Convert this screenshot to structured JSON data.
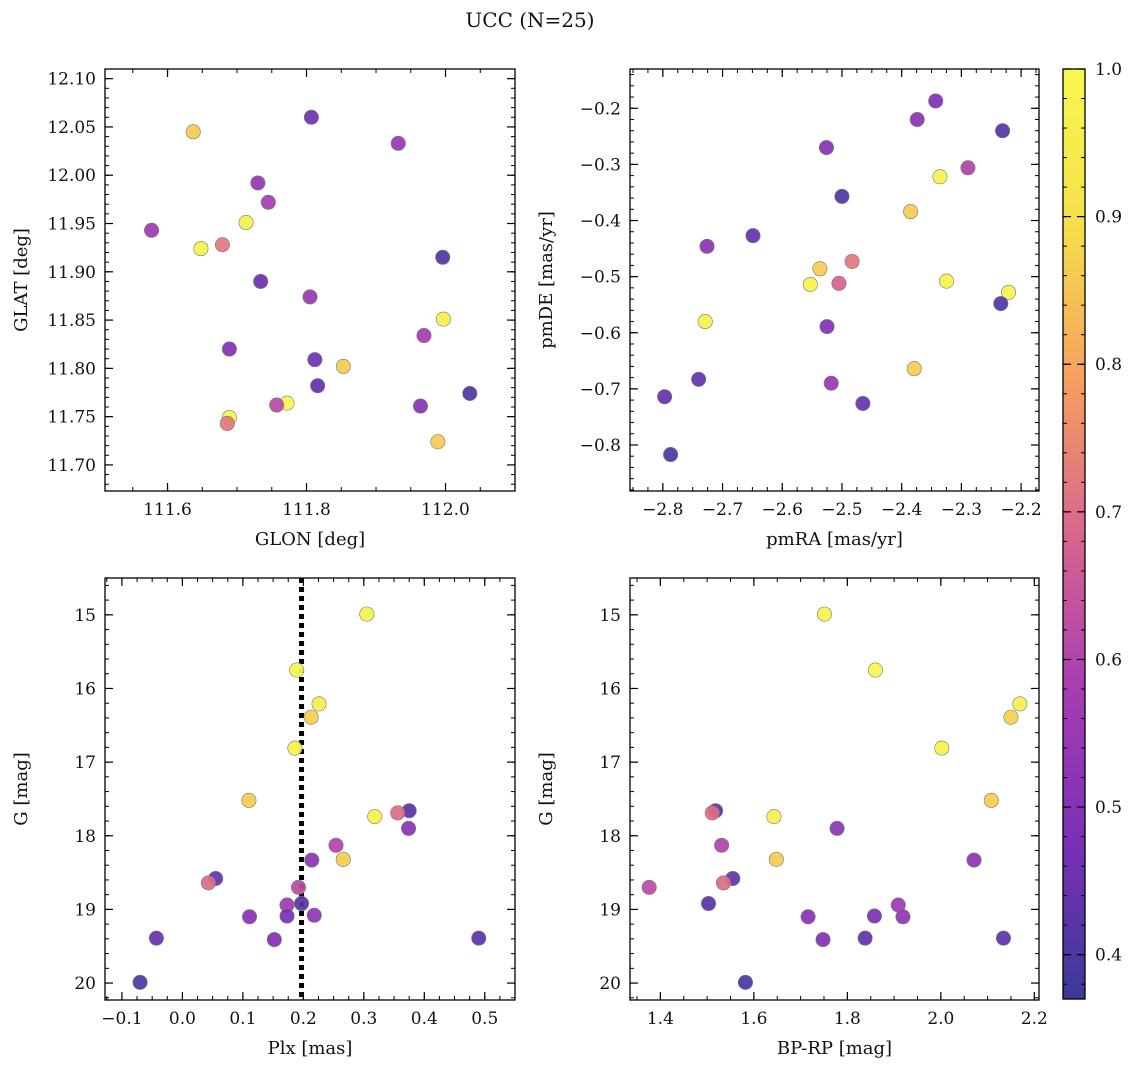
{
  "figure": {
    "title": "UCC (N=25)"
  },
  "colorbar": {
    "range": [
      0.37,
      1.0
    ],
    "ticks": [
      0.4,
      0.5,
      0.6,
      0.7,
      0.8,
      0.9,
      1.0
    ],
    "tick_labels": [
      "0.4",
      "0.5",
      "0.6",
      "0.7",
      "0.8",
      "0.9",
      "1.0"
    ],
    "colormap": "plasma",
    "colormap_stops": [
      "#3b3a98",
      "#7a2fb6",
      "#a63db2",
      "#d9658e",
      "#f6a05f",
      "#f5e04a",
      "#f6f84f"
    ]
  },
  "chart_data": [
    {
      "type": "scatter",
      "xlabel": "GLON [deg]",
      "ylabel": "GLAT [deg]",
      "xlim": [
        111.51,
        112.1
      ],
      "ylim": [
        11.673,
        12.11
      ],
      "xticks": [
        111.6,
        111.8,
        112.0
      ],
      "xtick_labels": [
        "111.6",
        "111.8",
        "112.0"
      ],
      "yticks": [
        11.7,
        11.75,
        11.8,
        11.85,
        11.9,
        11.95,
        12.0,
        12.05,
        12.1
      ],
      "ytick_labels": [
        "11.70",
        "11.75",
        "11.80",
        "11.85",
        "11.90",
        "11.95",
        "12.00",
        "12.05",
        "12.10"
      ],
      "invert_y": false,
      "points": [
        {
          "x": 111.637,
          "y": 12.045,
          "c": 0.86
        },
        {
          "x": 111.807,
          "y": 12.06,
          "c": 0.46
        },
        {
          "x": 111.932,
          "y": 12.033,
          "c": 0.55
        },
        {
          "x": 111.73,
          "y": 11.992,
          "c": 0.54
        },
        {
          "x": 111.745,
          "y": 11.972,
          "c": 0.58
        },
        {
          "x": 111.577,
          "y": 11.943,
          "c": 0.56
        },
        {
          "x": 111.713,
          "y": 11.951,
          "c": 0.97
        },
        {
          "x": 111.648,
          "y": 11.924,
          "c": 0.98
        },
        {
          "x": 111.679,
          "y": 11.928,
          "c": 0.72
        },
        {
          "x": 111.996,
          "y": 11.915,
          "c": 0.41
        },
        {
          "x": 111.734,
          "y": 11.89,
          "c": 0.45
        },
        {
          "x": 111.805,
          "y": 11.874,
          "c": 0.55
        },
        {
          "x": 111.997,
          "y": 11.851,
          "c": 0.96
        },
        {
          "x": 111.969,
          "y": 11.834,
          "c": 0.58
        },
        {
          "x": 111.689,
          "y": 11.82,
          "c": 0.5
        },
        {
          "x": 111.812,
          "y": 11.809,
          "c": 0.46
        },
        {
          "x": 111.853,
          "y": 11.802,
          "c": 0.86
        },
        {
          "x": 111.816,
          "y": 11.782,
          "c": 0.44
        },
        {
          "x": 112.035,
          "y": 11.774,
          "c": 0.41
        },
        {
          "x": 111.772,
          "y": 11.764,
          "c": 0.99
        },
        {
          "x": 111.757,
          "y": 11.762,
          "c": 0.62
        },
        {
          "x": 111.964,
          "y": 11.761,
          "c": 0.51
        },
        {
          "x": 111.689,
          "y": 11.749,
          "c": 0.99
        },
        {
          "x": 111.686,
          "y": 11.743,
          "c": 0.72
        },
        {
          "x": 111.989,
          "y": 11.724,
          "c": 0.86
        }
      ]
    },
    {
      "type": "scatter",
      "xlabel": "pmRA [mas/yr]",
      "ylabel": "pmDE [mas/yr]",
      "xlim": [
        -2.855,
        -2.17
      ],
      "ylim": [
        -0.882,
        -0.13
      ],
      "xticks": [
        -2.8,
        -2.7,
        -2.6,
        -2.5,
        -2.4,
        -2.3,
        -2.2
      ],
      "xtick_labels": [
        "−2.8",
        "−2.7",
        "−2.6",
        "−2.5",
        "−2.4",
        "−2.3",
        "−2.2"
      ],
      "yticks": [
        -0.8,
        -0.7,
        -0.6,
        -0.5,
        -0.4,
        -0.3,
        -0.2
      ],
      "ytick_labels": [
        "−0.8",
        "−0.7",
        "−0.6",
        "−0.5",
        "−0.4",
        "−0.3",
        "−0.2"
      ],
      "invert_y": false,
      "points": [
        {
          "x": -2.343,
          "y": -0.187,
          "c": 0.49
        },
        {
          "x": -2.374,
          "y": -0.22,
          "c": 0.51
        },
        {
          "x": -2.231,
          "y": -0.24,
          "c": 0.42
        },
        {
          "x": -2.526,
          "y": -0.27,
          "c": 0.51
        },
        {
          "x": -2.289,
          "y": -0.306,
          "c": 0.6
        },
        {
          "x": -2.336,
          "y": -0.322,
          "c": 0.97
        },
        {
          "x": -2.5,
          "y": -0.357,
          "c": 0.41
        },
        {
          "x": -2.385,
          "y": -0.384,
          "c": 0.86
        },
        {
          "x": -2.649,
          "y": -0.427,
          "c": 0.44
        },
        {
          "x": -2.726,
          "y": -0.446,
          "c": 0.52
        },
        {
          "x": -2.483,
          "y": -0.473,
          "c": 0.72
        },
        {
          "x": -2.537,
          "y": -0.486,
          "c": 0.86
        },
        {
          "x": -2.505,
          "y": -0.512,
          "c": 0.68
        },
        {
          "x": -2.553,
          "y": -0.514,
          "c": 0.98
        },
        {
          "x": -2.325,
          "y": -0.508,
          "c": 0.98
        },
        {
          "x": -2.221,
          "y": -0.528,
          "c": 0.98
        },
        {
          "x": -2.234,
          "y": -0.548,
          "c": 0.41
        },
        {
          "x": -2.729,
          "y": -0.58,
          "c": 0.98
        },
        {
          "x": -2.525,
          "y": -0.589,
          "c": 0.5
        },
        {
          "x": -2.379,
          "y": -0.664,
          "c": 0.86
        },
        {
          "x": -2.74,
          "y": -0.683,
          "c": 0.44
        },
        {
          "x": -2.518,
          "y": -0.69,
          "c": 0.55
        },
        {
          "x": -2.797,
          "y": -0.714,
          "c": 0.45
        },
        {
          "x": -2.465,
          "y": -0.726,
          "c": 0.45
        },
        {
          "x": -2.787,
          "y": -0.817,
          "c": 0.4
        }
      ]
    },
    {
      "type": "scatter",
      "xlabel": "Plx [mas]",
      "ylabel": "G [mag]",
      "xlim": [
        -0.128,
        0.55
      ],
      "ylim": [
        14.5,
        20.23
      ],
      "xticks": [
        -0.1,
        0.0,
        0.1,
        0.2,
        0.3,
        0.4,
        0.5
      ],
      "xtick_labels": [
        "−0.1",
        "0.0",
        "0.1",
        "0.2",
        "0.3",
        "0.4",
        "0.5"
      ],
      "yticks": [
        15,
        16,
        17,
        18,
        19,
        20
      ],
      "ytick_labels": [
        "15",
        "16",
        "17",
        "18",
        "19",
        "20"
      ],
      "invert_y": true,
      "vline": 0.197,
      "points": [
        {
          "x": 0.305,
          "y": 14.99,
          "c": 0.98
        },
        {
          "x": 0.189,
          "y": 15.75,
          "c": 0.99
        },
        {
          "x": 0.226,
          "y": 16.21,
          "c": 0.95
        },
        {
          "x": 0.213,
          "y": 16.39,
          "c": 0.87
        },
        {
          "x": 0.186,
          "y": 16.81,
          "c": 0.97
        },
        {
          "x": 0.11,
          "y": 17.52,
          "c": 0.86
        },
        {
          "x": 0.375,
          "y": 17.66,
          "c": 0.42
        },
        {
          "x": 0.356,
          "y": 17.69,
          "c": 0.7
        },
        {
          "x": 0.318,
          "y": 17.74,
          "c": 0.97
        },
        {
          "x": 0.374,
          "y": 17.9,
          "c": 0.52
        },
        {
          "x": 0.254,
          "y": 18.13,
          "c": 0.6
        },
        {
          "x": 0.214,
          "y": 18.33,
          "c": 0.52
        },
        {
          "x": 0.266,
          "y": 18.32,
          "c": 0.86
        },
        {
          "x": 0.055,
          "y": 18.58,
          "c": 0.44
        },
        {
          "x": 0.043,
          "y": 18.64,
          "c": 0.7
        },
        {
          "x": 0.192,
          "y": 18.7,
          "c": 0.62
        },
        {
          "x": 0.173,
          "y": 18.94,
          "c": 0.56
        },
        {
          "x": 0.197,
          "y": 18.92,
          "c": 0.42
        },
        {
          "x": 0.111,
          "y": 19.1,
          "c": 0.51
        },
        {
          "x": 0.173,
          "y": 19.09,
          "c": 0.48
        },
        {
          "x": 0.218,
          "y": 19.08,
          "c": 0.53
        },
        {
          "x": -0.043,
          "y": 19.39,
          "c": 0.44
        },
        {
          "x": 0.152,
          "y": 19.41,
          "c": 0.5
        },
        {
          "x": 0.49,
          "y": 19.39,
          "c": 0.43
        },
        {
          "x": -0.07,
          "y": 19.99,
          "c": 0.4
        }
      ]
    },
    {
      "type": "scatter",
      "xlabel": "BP-RP [mag]",
      "ylabel": "G [mag]",
      "xlim": [
        1.335,
        2.21
      ],
      "ylim": [
        14.5,
        20.23
      ],
      "xticks": [
        1.4,
        1.6,
        1.8,
        2.0,
        2.2
      ],
      "xtick_labels": [
        "1.4",
        "1.6",
        "1.8",
        "2.0",
        "2.2"
      ],
      "yticks": [
        15,
        16,
        17,
        18,
        19,
        20
      ],
      "ytick_labels": [
        "15",
        "16",
        "17",
        "18",
        "19",
        "20"
      ],
      "invert_y": true,
      "points": [
        {
          "x": 1.751,
          "y": 14.99,
          "c": 0.98
        },
        {
          "x": 1.86,
          "y": 15.75,
          "c": 0.99
        },
        {
          "x": 2.169,
          "y": 16.21,
          "c": 0.95
        },
        {
          "x": 2.15,
          "y": 16.39,
          "c": 0.87
        },
        {
          "x": 2.002,
          "y": 16.81,
          "c": 0.97
        },
        {
          "x": 2.108,
          "y": 17.52,
          "c": 0.86
        },
        {
          "x": 1.518,
          "y": 17.66,
          "c": 0.42
        },
        {
          "x": 1.511,
          "y": 17.69,
          "c": 0.7
        },
        {
          "x": 1.643,
          "y": 17.74,
          "c": 0.97
        },
        {
          "x": 1.778,
          "y": 17.9,
          "c": 0.52
        },
        {
          "x": 1.531,
          "y": 18.13,
          "c": 0.6
        },
        {
          "x": 2.071,
          "y": 18.33,
          "c": 0.52
        },
        {
          "x": 1.648,
          "y": 18.32,
          "c": 0.86
        },
        {
          "x": 1.555,
          "y": 18.58,
          "c": 0.44
        },
        {
          "x": 1.535,
          "y": 18.64,
          "c": 0.7
        },
        {
          "x": 1.376,
          "y": 18.7,
          "c": 0.62
        },
        {
          "x": 1.909,
          "y": 18.94,
          "c": 0.56
        },
        {
          "x": 1.503,
          "y": 18.92,
          "c": 0.42
        },
        {
          "x": 1.716,
          "y": 19.1,
          "c": 0.51
        },
        {
          "x": 1.858,
          "y": 19.09,
          "c": 0.48
        },
        {
          "x": 1.919,
          "y": 19.1,
          "c": 0.53
        },
        {
          "x": 1.838,
          "y": 19.39,
          "c": 0.44
        },
        {
          "x": 1.748,
          "y": 19.41,
          "c": 0.5
        },
        {
          "x": 2.134,
          "y": 19.39,
          "c": 0.43
        },
        {
          "x": 1.582,
          "y": 19.99,
          "c": 0.4
        }
      ]
    }
  ]
}
